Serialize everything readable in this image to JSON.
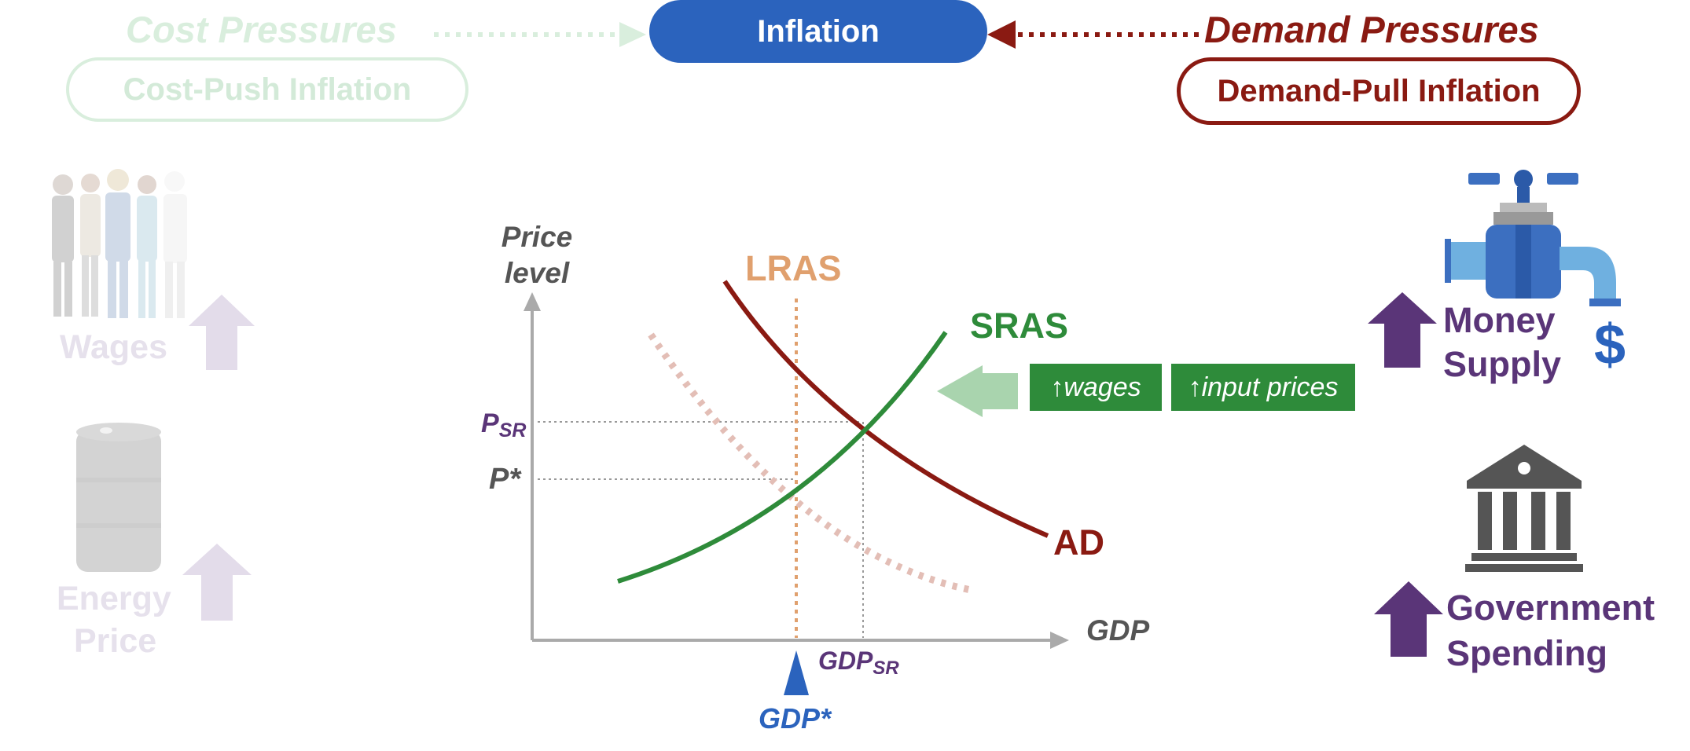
{
  "header": {
    "center_title": "Inflation",
    "left_title": "Cost Pressures",
    "left_pill": "Cost-Push Inflation",
    "right_title": "Demand Pressures",
    "right_pill": "Demand-Pull Inflation"
  },
  "left_panel": {
    "wages_label": "Wages",
    "energy_label_line1": "Energy",
    "energy_label_line2": "Price"
  },
  "graph": {
    "y_axis_line1": "Price",
    "y_axis_line2": "level",
    "x_axis": "GDP",
    "lras_label": "LRAS",
    "sras_label": "SRAS",
    "ad_label": "AD",
    "psr_main": "P",
    "psr_sub": "SR",
    "pstar": "P*",
    "gdpsr_main": "GDP",
    "gdpsr_sub": "SR",
    "gdpstar": "GDP*",
    "shift_tag_1": "↑wages",
    "shift_tag_2": "↑input prices"
  },
  "right_panel": {
    "money_line1": "Money",
    "money_line2": "Supply",
    "dollar_symbol": "$",
    "gov_line1": "Government",
    "gov_line2": "Spending"
  },
  "colors": {
    "inflation_blue": "#2b63bd",
    "demand_red": "#8a1a12",
    "sras_green": "#2e8b3a",
    "lras_tan": "#e0a06e",
    "purple": "#5a3578",
    "faded_green": "#dcefe0",
    "faded_purple": "#e3dcea"
  }
}
